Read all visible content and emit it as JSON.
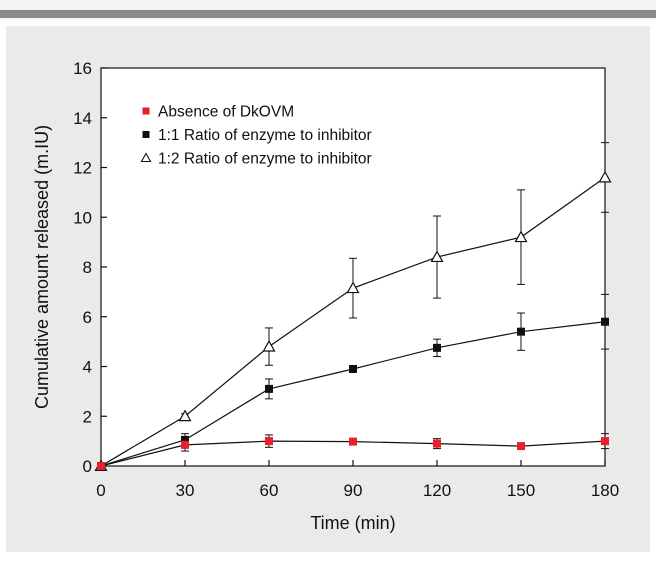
{
  "colors": {
    "panel_background": "#e9ebe8",
    "plot_background": "#ffffff",
    "header_rule": "#8a8a8a",
    "series_absence": "#e8202a",
    "series_1_1": "#111111",
    "series_1_2": "#111111"
  },
  "chart_data": {
    "type": "line",
    "xlabel": "Time (min)",
    "ylabel": "Cumulative amount released (m.IU)",
    "xlim": [
      0,
      180
    ],
    "ylim": [
      0,
      16
    ],
    "x_ticks": [
      0,
      30,
      60,
      90,
      120,
      150,
      180
    ],
    "y_ticks": [
      0,
      2,
      4,
      6,
      8,
      10,
      12,
      14,
      16
    ],
    "grid": false,
    "legend_position": "top-left",
    "series": [
      {
        "name": "Absence of DkOVM",
        "marker": "filled-square",
        "color": "#e8202a",
        "x": [
          0,
          30,
          60,
          90,
          120,
          150,
          180
        ],
        "y": [
          0,
          0.85,
          1.0,
          0.98,
          0.9,
          0.8,
          1.0
        ],
        "error": [
          0.05,
          0.25,
          0.25,
          0.08,
          0.2,
          0.05,
          0.3
        ]
      },
      {
        "name": "1:1 Ratio of enzyme to inhibitor",
        "marker": "filled-square",
        "color": "#111111",
        "x": [
          0,
          30,
          60,
          90,
          120,
          150,
          180
        ],
        "y": [
          0,
          1.05,
          3.1,
          3.9,
          4.75,
          5.4,
          5.8
        ],
        "error": [
          0.05,
          0.25,
          0.4,
          0.12,
          0.35,
          0.75,
          1.1
        ]
      },
      {
        "name": "1:2 Ratio of enzyme to inhibitor",
        "marker": "open-triangle",
        "color": "#111111",
        "x": [
          0,
          30,
          60,
          90,
          120,
          150,
          180
        ],
        "y": [
          0,
          2.0,
          4.8,
          7.15,
          8.4,
          9.2,
          11.6
        ],
        "error": [
          0.05,
          0.1,
          0.75,
          1.2,
          1.65,
          1.9,
          1.4
        ]
      }
    ]
  }
}
